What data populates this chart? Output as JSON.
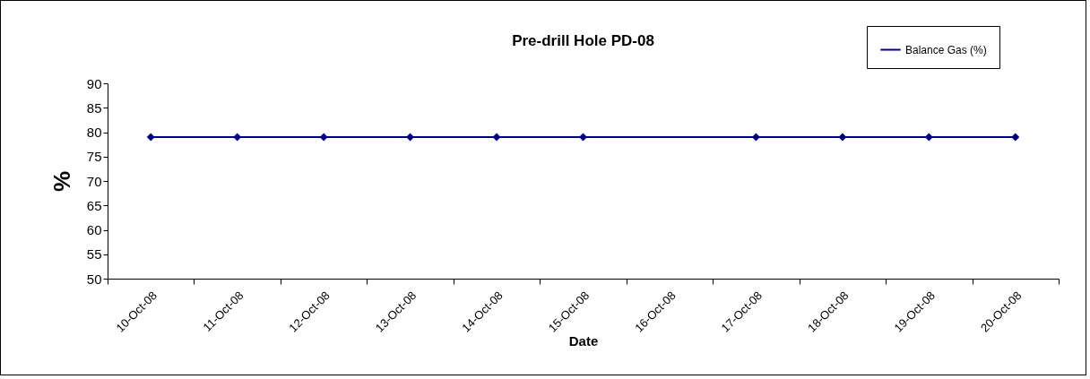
{
  "chart_data": {
    "type": "line",
    "title": "Pre-drill Hole PD-08",
    "xlabel": "Date",
    "ylabel": "%",
    "categories": [
      "10-Oct-08",
      "11-Oct-08",
      "12-Oct-08",
      "13-Oct-08",
      "14-Oct-08",
      "15-Oct-08",
      "16-Oct-08",
      "17-Oct-08",
      "18-Oct-08",
      "19-Oct-08",
      "20-Oct-08"
    ],
    "series": [
      {
        "name": "Balance Gas (%)",
        "color": "#000080",
        "values": [
          79,
          79,
          79,
          79,
          79,
          79,
          null,
          79,
          79,
          79,
          79
        ]
      }
    ],
    "ylim": [
      50,
      90
    ],
    "yticks": [
      50,
      55,
      60,
      65,
      70,
      75,
      80,
      85,
      90
    ],
    "grid": false,
    "legend": "top right",
    "marker": "diamond",
    "line_style": "solid"
  }
}
